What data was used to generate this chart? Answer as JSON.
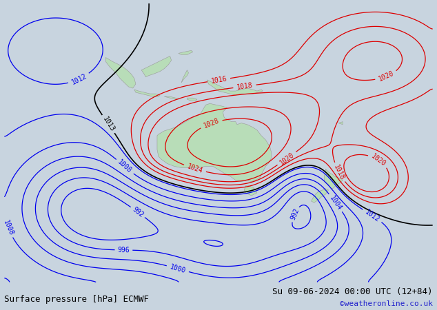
{
  "title_left": "Surface pressure [hPa] ECMWF",
  "title_right": "Su 09-06-2024 00:00 UTC (12+84)",
  "credit": "©weatheronline.co.uk",
  "bg_color": "#c8d4df",
  "land_color": "#b8ddb8",
  "border_color": "#999999",
  "isobar_blue": "#0000ee",
  "isobar_red": "#dd0000",
  "isobar_black": "#000000",
  "label_fontsize": 7,
  "title_fontsize": 9,
  "credit_fontsize": 8,
  "credit_color": "#2222cc",
  "lon_min": 60,
  "lon_max": 210,
  "lat_min": -75,
  "lat_max": 25
}
